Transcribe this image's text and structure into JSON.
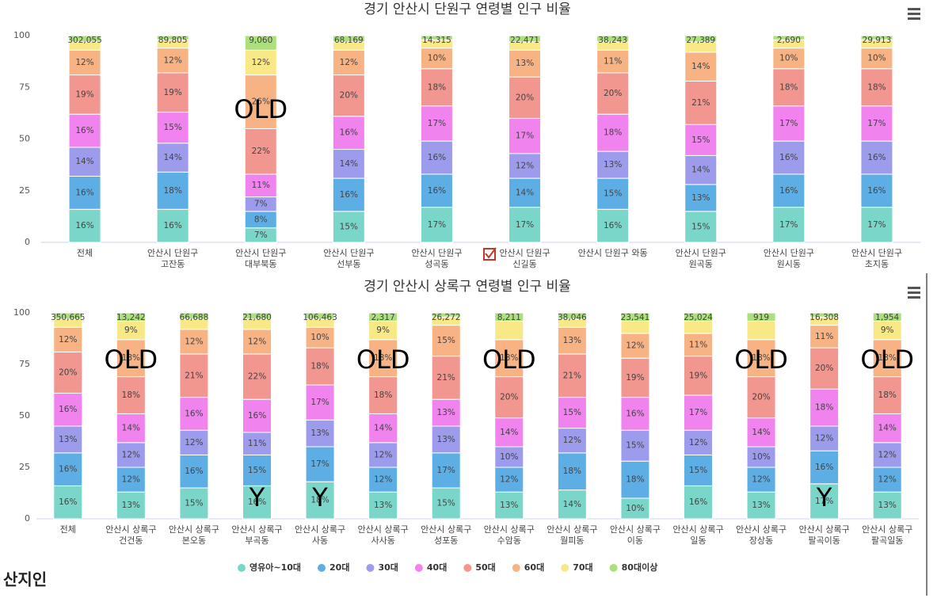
{
  "chart_data": [
    {
      "type": "stacked_bar",
      "title": "경기 안산시 단원구 연령별 인구 비율",
      "categories": [
        "전체",
        "안산시 단원구\n고잔동",
        "안산시 단원구\n대부북동",
        "안산시 단원구\n선부동",
        "안산시 단원구\n성곡동",
        "안산시 단원구\n신길동",
        "안산시 단원구 와동",
        "안산시 단원구\n원곡동",
        "안산시 단원구\n원시동",
        "안산시 단원구\n초지동"
      ],
      "ylim": [
        0,
        100
      ],
      "yticks": [
        0,
        25,
        50,
        75,
        100
      ],
      "grid": false,
      "stack_labels": [
        "302,055",
        "89,805",
        "9,060",
        "68,169",
        "14,315",
        "22,471",
        "38,243",
        "27,389",
        "2,690",
        "29,913"
      ],
      "annotations": [
        null,
        null,
        "OLD",
        null,
        null,
        null,
        null,
        null,
        null,
        null
      ],
      "series": [
        {
          "color": "#7ad6c8",
          "values": [
            16,
            16,
            7,
            15,
            17,
            17,
            16,
            15,
            17,
            17
          ],
          "value_labels": [
            "16%",
            "16%",
            "7%",
            "15%",
            "17%",
            "17%",
            "16%",
            "15%",
            "17%",
            "17%"
          ]
        },
        {
          "color": "#5eaee6",
          "values": [
            16,
            18,
            8,
            16,
            16,
            14,
            15,
            13,
            16,
            16
          ],
          "value_labels": [
            "16%",
            "18%",
            "8%",
            "16%",
            "16%",
            "14%",
            "15%",
            "13%",
            "16%",
            "16%"
          ]
        },
        {
          "color": "#9d9bec",
          "values": [
            14,
            14,
            7,
            14,
            16,
            12,
            13,
            14,
            16,
            16
          ],
          "value_labels": [
            "14%",
            "14%",
            "7%",
            "14%",
            "16%",
            "12%",
            "13%",
            "14%",
            "16%",
            "16%"
          ]
        },
        {
          "color": "#f083ee",
          "values": [
            16,
            15,
            11,
            16,
            17,
            17,
            18,
            15,
            17,
            17
          ],
          "value_labels": [
            "16%",
            "15%",
            "11%",
            "16%",
            "17%",
            "17%",
            "18%",
            "15%",
            "17%",
            "17%"
          ]
        },
        {
          "color": "#f29690",
          "values": [
            19,
            19,
            22,
            20,
            18,
            20,
            20,
            21,
            18,
            18
          ],
          "value_labels": [
            "19%",
            "19%",
            "22%",
            "20%",
            "18%",
            "20%",
            "20%",
            "21%",
            "18%",
            "18%"
          ]
        },
        {
          "color": "#f8b384",
          "values": [
            12,
            12,
            26,
            12,
            10,
            13,
            11,
            14,
            10,
            10
          ],
          "value_labels": [
            "12%",
            "12%",
            "26%",
            "12%",
            "10%",
            "13%",
            "11%",
            "14%",
            "10%",
            "10%"
          ]
        },
        {
          "color": "#f9e886",
          "values": [
            4,
            4,
            12,
            4,
            4,
            4,
            4,
            5,
            4,
            4
          ],
          "value_labels": [
            null,
            null,
            "12%",
            null,
            null,
            null,
            null,
            null,
            null,
            null
          ]
        },
        {
          "color": "#abe07c",
          "values": [
            3,
            2,
            7,
            3,
            2,
            3,
            3,
            3,
            2,
            2
          ],
          "value_labels": [
            null,
            null,
            null,
            null,
            null,
            null,
            null,
            null,
            null,
            null
          ]
        }
      ]
    },
    {
      "type": "stacked_bar",
      "title": "경기 안산시 상록구 연령별 인구 비율",
      "categories": [
        "전체",
        "안산시 상록구\n건건동",
        "안산시 상록구\n본오동",
        "안산시 상록구\n부곡동",
        "안산시 상록구\n사동",
        "안산시 상록구\n사사동",
        "안산시 상록구\n성포동",
        "안산시 상록구\n수암동",
        "안산시 상록구\n월피동",
        "안산시 상록구\n이동",
        "안산시 상록구\n일동",
        "안산시 상록구\n장상동",
        "안산시 상록구\n팔곡이동",
        "안산시 상록구\n팔곡일동"
      ],
      "ylim": [
        0,
        100
      ],
      "yticks": [
        0,
        25,
        50,
        75,
        100
      ],
      "grid": false,
      "legend": "bottom",
      "stack_labels": [
        "350,665",
        "13,242",
        "66,688",
        "21,680",
        "106,463",
        "2,317",
        "26,272",
        "8,211",
        "38,046",
        "23,541",
        "25,024",
        "919",
        "16,308",
        "1,954"
      ],
      "annotations": [
        null,
        "OLD",
        null,
        "Y",
        "Y",
        "OLD",
        null,
        "OLD",
        null,
        null,
        null,
        "OLD",
        "Y",
        "OLD"
      ],
      "series": [
        {
          "name": "영유아~10대",
          "color": "#7ad6c8",
          "values": [
            16,
            13,
            15,
            16,
            18,
            13,
            15,
            13,
            14,
            10,
            16,
            13,
            17,
            13
          ],
          "value_labels": [
            "16%",
            "13%",
            "15%",
            "16%",
            "18%",
            "13%",
            "15%",
            "13%",
            "14%",
            "10%",
            "16%",
            "13%",
            "17%",
            "13%"
          ]
        },
        {
          "name": "20대",
          "color": "#5eaee6",
          "values": [
            16,
            12,
            16,
            15,
            17,
            12,
            17,
            12,
            18,
            18,
            15,
            12,
            16,
            12
          ],
          "value_labels": [
            "16%",
            "12%",
            "16%",
            "15%",
            "17%",
            "12%",
            "17%",
            "12%",
            "18%",
            "18%",
            "15%",
            "12%",
            "16%",
            "12%"
          ]
        },
        {
          "name": "30대",
          "color": "#9d9bec",
          "values": [
            13,
            12,
            12,
            11,
            13,
            12,
            13,
            10,
            12,
            15,
            12,
            10,
            12,
            12
          ],
          "value_labels": [
            "13%",
            "12%",
            "12%",
            "11%",
            "13%",
            "12%",
            "13%",
            "10%",
            "12%",
            "15%",
            "12%",
            "10%",
            "12%",
            "12%"
          ]
        },
        {
          "name": "40대",
          "color": "#f083ee",
          "values": [
            16,
            14,
            16,
            16,
            17,
            14,
            13,
            14,
            15,
            16,
            17,
            14,
            18,
            14
          ],
          "value_labels": [
            "16%",
            "14%",
            "16%",
            "16%",
            "17%",
            "14%",
            "13%",
            "14%",
            "15%",
            "16%",
            "17%",
            "14%",
            "18%",
            "14%"
          ]
        },
        {
          "name": "50대",
          "color": "#f29690",
          "values": [
            20,
            18,
            21,
            22,
            18,
            18,
            21,
            20,
            21,
            19,
            19,
            20,
            20,
            18
          ],
          "value_labels": [
            "20%",
            "18%",
            "21%",
            "22%",
            "18%",
            "18%",
            "21%",
            "20%",
            "21%",
            "19%",
            "19%",
            "20%",
            "20%",
            "18%"
          ]
        },
        {
          "name": "60대",
          "color": "#f8b384",
          "values": [
            12,
            18,
            12,
            12,
            10,
            18,
            15,
            18,
            13,
            12,
            11,
            18,
            11,
            18
          ],
          "value_labels": [
            "12%",
            "18%",
            "12%",
            "12%",
            "10%",
            "18%",
            "15%",
            "18%",
            "13%",
            "12%",
            "11%",
            "18%",
            "11%",
            "18%"
          ]
        },
        {
          "name": "70대",
          "color": "#f9e886",
          "values": [
            4,
            9,
            5,
            5,
            4,
            9,
            4,
            9,
            4,
            6,
            6,
            9,
            4,
            9
          ],
          "value_labels": [
            null,
            "9%",
            null,
            null,
            null,
            "9%",
            null,
            null,
            null,
            null,
            null,
            null,
            null,
            "9%"
          ]
        },
        {
          "name": "80대이상",
          "color": "#abe07c",
          "values": [
            3,
            4,
            3,
            3,
            3,
            4,
            2,
            4,
            3,
            4,
            4,
            4,
            2,
            4
          ],
          "value_labels": [
            null,
            null,
            null,
            null,
            null,
            null,
            null,
            null,
            null,
            null,
            null,
            null,
            null,
            null
          ]
        }
      ]
    }
  ],
  "logo": "산지인"
}
